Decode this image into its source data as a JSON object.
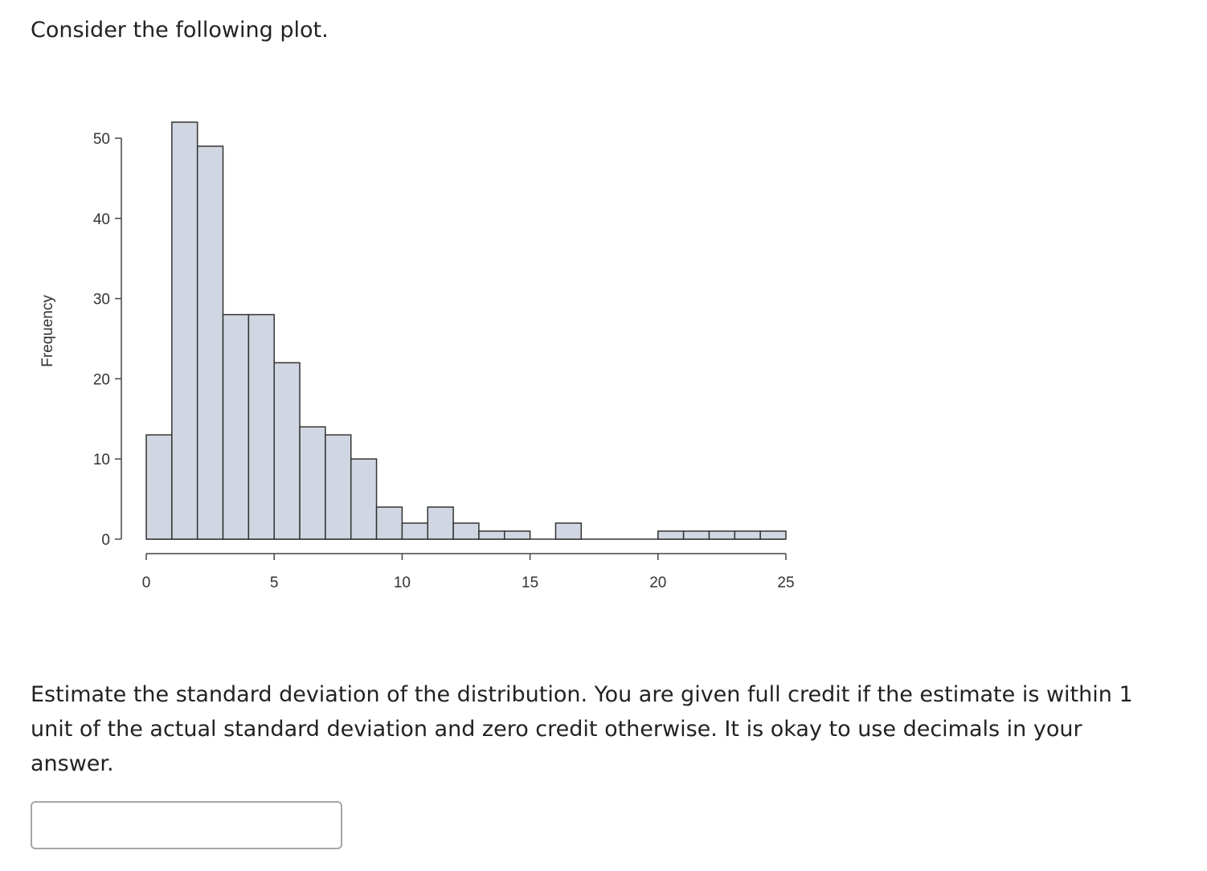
{
  "prompt": {
    "intro": "Consider the following plot.",
    "question": "Estimate the standard deviation of the distribution. You are given full credit if the estimate is within 1 unit of the actual standard deviation and zero credit otherwise. It is okay to use decimals in your answer."
  },
  "answer": {
    "value": "",
    "placeholder": ""
  },
  "colors": {
    "bar_fill": "#d0d6e2",
    "bar_stroke": "#333333",
    "axis": "#444444"
  },
  "chart_data": {
    "type": "bar",
    "title": "",
    "xlabel": "",
    "ylabel": "Frequency",
    "bin_width": 1,
    "bin_starts": [
      0,
      1,
      2,
      3,
      4,
      5,
      6,
      7,
      8,
      9,
      10,
      11,
      12,
      13,
      14,
      15,
      16,
      17,
      18,
      19,
      20,
      21,
      22,
      23,
      24
    ],
    "values": [
      13,
      52,
      49,
      28,
      28,
      22,
      14,
      13,
      10,
      4,
      2,
      4,
      2,
      1,
      1,
      0,
      2,
      0,
      0,
      0,
      1,
      1,
      1,
      1,
      1
    ],
    "xlim": [
      0,
      25
    ],
    "ylim": [
      0,
      50
    ],
    "xticks": [
      0,
      5,
      10,
      15,
      20,
      25
    ],
    "yticks": [
      0,
      10,
      20,
      30,
      40,
      50
    ],
    "grid": false
  }
}
